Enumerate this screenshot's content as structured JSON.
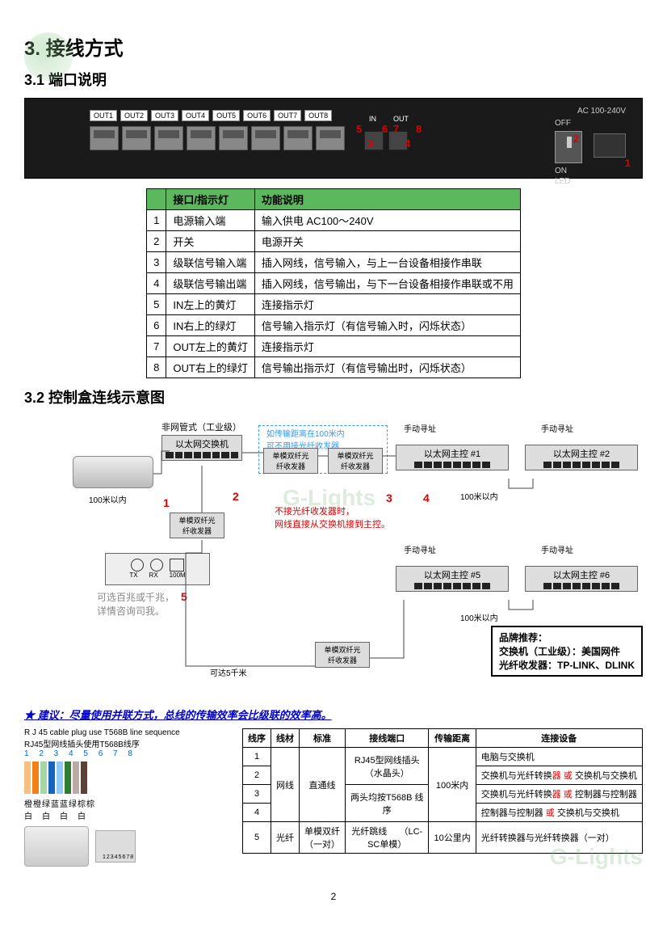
{
  "watermarks": {
    "brand": "G-Lights"
  },
  "section": {
    "num": "3.",
    "title": "接线方式"
  },
  "sub1": {
    "num": "3.1",
    "title": "端口说明"
  },
  "device": {
    "outs": [
      "OUT1",
      "OUT2",
      "OUT3",
      "OUT4",
      "OUT5",
      "OUT6",
      "OUT7",
      "OUT8"
    ],
    "in_label": "IN",
    "out_label": "OUT",
    "off": "OFF",
    "on": "ON",
    "led": "LED",
    "ac": "AC 100-240V",
    "red": {
      "r1": "1",
      "r2": "2",
      "r3": "3",
      "r4": "4",
      "r5": "5",
      "r6": "6",
      "r7": "7",
      "r8": "8"
    }
  },
  "port_table": {
    "head": [
      "",
      "接口/指示灯",
      "功能说明"
    ],
    "rows": [
      [
        "1",
        "电源输入端",
        "输入供电 AC100～240V"
      ],
      [
        "2",
        "开关",
        "电源开关"
      ],
      [
        "3",
        "级联信号输入端",
        "插入网线，信号输入，与上一台设备相接作串联"
      ],
      [
        "4",
        "级联信号输出端",
        "插入网线，信号输出，与下一台设备相接作串联或不用"
      ],
      [
        "5",
        "IN左上的黄灯",
        "连接指示灯"
      ],
      [
        "6",
        "IN右上的绿灯",
        "信号输入指示灯（有信号输入时，闪烁状态）"
      ],
      [
        "7",
        "OUT左上的黄灯",
        "连接指示灯"
      ],
      [
        "8",
        "OUT右上的绿灯",
        "信号输出指示灯（有信号输出时，闪烁状态）"
      ]
    ]
  },
  "sub2": {
    "num": "3.2",
    "title": "控制盒连线示意图"
  },
  "diagram": {
    "non_managed": "非网管式（工业级）",
    "eth_switch": "以太网交换机",
    "sfp_box": "单模双纤光\n纤收发器",
    "blue_note": "如传输距离在100米内\n可不用接光纤收发器",
    "main1": "以太网主控  #1",
    "main2": "以太网主控  #2",
    "main5": "以太网主控  #5",
    "main6": "以太网主控  #6",
    "manual": "手动寻址",
    "dist100_1": "100米以内",
    "dist100_2": "100米以内",
    "dist100_3": "100米以内",
    "tx": "TX",
    "rx": "RX",
    "m100": "100M",
    "optional": "可选百兆或千兆，\n详情咨询司我。",
    "red_note": "不接光纤收发器时，\n网线直接从交换机接到主控。",
    "up5k": "可达5千米",
    "nums": {
      "n1": "1",
      "n2": "2",
      "n3": "3",
      "n4": "4",
      "n5": "5"
    },
    "brand_rec": "品牌推荐：",
    "brand_sw": "交换机（工业级）：美国网件",
    "brand_sfp": "光纤收发器：TP-LINK、DLINK"
  },
  "suggest": "★  建议：尽量使用并联方式，总线的传输效率会比级联的效率高。",
  "rj45_legend": {
    "line1": "R J 45 cable plug use T568B line sequence",
    "line2": "RJ45型网线插头使用T568B线序",
    "nums": "1 2 3 4 5 6 7 8",
    "colors_cn": "橙橙绿蓝蓝绿棕棕",
    "colors_cn2": "白　白　白　白",
    "wire_colors": [
      "#f5c080",
      "#f57f17",
      "#a5d6a7",
      "#1565c0",
      "#90caf9",
      "#2e7d32",
      "#bcaaa4",
      "#5d4037"
    ]
  },
  "conn_table": {
    "head": [
      "线序",
      "线材",
      "标准",
      "接线端口",
      "传输距离",
      "连接设备"
    ],
    "rows": [
      {
        "n": "1",
        "mat": "",
        "std": "",
        "port": "",
        "dist": "",
        "dev": "电脑与交换机"
      },
      {
        "n": "2",
        "mat": "",
        "std": "",
        "port": "",
        "dist": "",
        "dev_pre": "交换机与光纤转换",
        "dev_or": "器 或 ",
        "dev_post": "交换机与交换机"
      },
      {
        "n": "3",
        "mat": "",
        "std": "",
        "port": "",
        "dist": "",
        "dev_pre": "交换机与光纤转换",
        "dev_or": "器 或 ",
        "dev_post": "控制器与控制器"
      },
      {
        "n": "4",
        "mat": "",
        "std": "",
        "port": "",
        "dist": "",
        "dev_pre": "控制器与控制器 ",
        "dev_or": "或 ",
        "dev_post": "交换机与交换机"
      },
      {
        "n": "5",
        "mat": "光纤",
        "std": "单模双纤\n（一对）",
        "port": "光纤跳线     （LC-\nSC单模）",
        "dist": "10公里内",
        "dev": "光纤转换器与光纤转换器（一对）"
      }
    ],
    "merge": {
      "mat": "网线",
      "std": "直通线",
      "port1": "RJ45型网线插头\n（水晶头）",
      "port2": "两头均按T568B 线\n序",
      "dist": "100米内"
    }
  },
  "page": "2"
}
